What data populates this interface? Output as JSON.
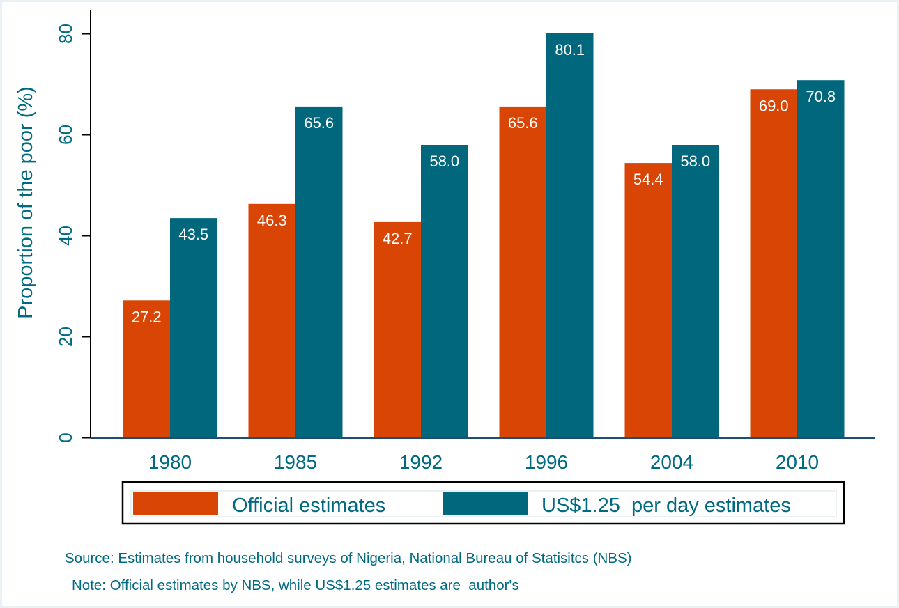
{
  "chart_data": {
    "type": "bar",
    "title": "",
    "xlabel": "",
    "ylabel": "Proportion of the poor (%)",
    "ylim": [
      0,
      85
    ],
    "yticks": [
      0,
      20,
      40,
      60,
      80
    ],
    "categories": [
      "1980",
      "1985",
      "1992",
      "1996",
      "2004",
      "2010"
    ],
    "series": [
      {
        "name": "Official estimates",
        "color": "#d94505",
        "values": [
          27.2,
          46.3,
          42.7,
          65.6,
          54.4,
          69.0
        ],
        "labels": [
          "27.2",
          "46.3",
          "42.7",
          "65.6",
          "54.4",
          "69.0"
        ]
      },
      {
        "name": "US$1.25  per day estimates",
        "color": "#00677d",
        "values": [
          43.5,
          65.6,
          58.0,
          80.1,
          58.0,
          70.8
        ],
        "labels": [
          "43.5",
          "65.6",
          "58.0",
          "80.1",
          "58.0",
          "70.8"
        ]
      }
    ],
    "grid": false,
    "legend_placement": "bottom",
    "notes": [
      "Source: Estimates from household surveys of Nigeria, National Bureau of Statisitcs (NBS)",
      "Note: Official estimates by NBS, while US$1.25 estimates are  author's"
    ]
  },
  "colors": {
    "text": "#006a80",
    "axis": "#000000",
    "baseline": "#1f4e72"
  }
}
